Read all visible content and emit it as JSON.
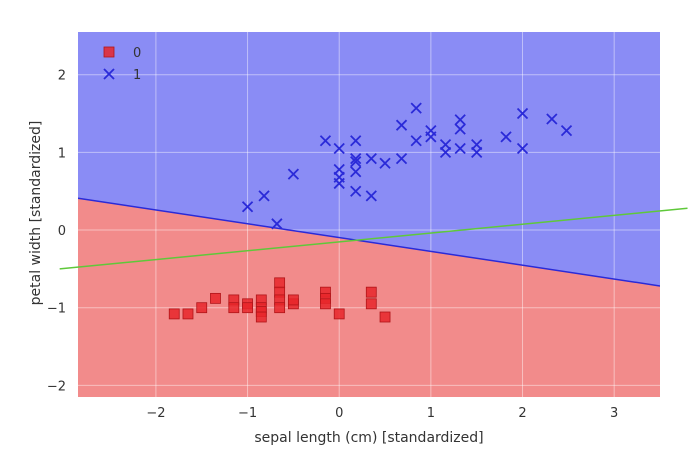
{
  "chart_data": {
    "type": "scatter",
    "title": "",
    "xlabel": "sepal length (cm) [standardized]",
    "ylabel": "petal width [standardized]",
    "xlim": [
      -2.85,
      3.5
    ],
    "ylim": [
      -2.15,
      2.55
    ],
    "xticks": [
      -2,
      -1,
      0,
      1,
      2,
      3
    ],
    "yticks": [
      -2,
      -1,
      0,
      1,
      2
    ],
    "tick_labels_x": [
      "−2",
      "−1",
      "0",
      "1",
      "2",
      "3"
    ],
    "tick_labels_y": [
      "−2",
      "−1",
      "0",
      "1",
      "2"
    ],
    "grid": true,
    "legend_position": "top-left",
    "regions": [
      {
        "class": "1",
        "color": "#8a8cf5",
        "side": "above"
      },
      {
        "class": "0",
        "color": "#f28b8b",
        "side": "below"
      }
    ],
    "decision_boundary": {
      "color": "#2a2ad8",
      "points": [
        [
          -2.85,
          0.41
        ],
        [
          3.5,
          -0.72
        ]
      ]
    },
    "extra_line": {
      "color": "#5fc83a",
      "points": [
        [
          -3.05,
          -0.5
        ],
        [
          3.8,
          0.28
        ]
      ]
    },
    "series": [
      {
        "name": "0",
        "marker": "square",
        "color": "#e8262a",
        "points": [
          [
            -1.8,
            -1.08
          ],
          [
            -1.65,
            -1.08
          ],
          [
            -1.5,
            -1.0
          ],
          [
            -1.35,
            -0.88
          ],
          [
            -1.15,
            -0.9
          ],
          [
            -1.15,
            -1.0
          ],
          [
            -1.0,
            -0.95
          ],
          [
            -1.0,
            -1.0
          ],
          [
            -0.85,
            -0.9
          ],
          [
            -0.85,
            -1.0
          ],
          [
            -0.85,
            -1.05
          ],
          [
            -0.85,
            -1.12
          ],
          [
            -0.65,
            -0.68
          ],
          [
            -0.65,
            -0.8
          ],
          [
            -0.65,
            -0.9
          ],
          [
            -0.65,
            -1.0
          ],
          [
            -0.5,
            -0.95
          ],
          [
            -0.5,
            -0.9
          ],
          [
            -0.15,
            -0.8
          ],
          [
            -0.15,
            -0.88
          ],
          [
            -0.15,
            -0.95
          ],
          [
            0.0,
            -1.08
          ],
          [
            0.35,
            -0.8
          ],
          [
            0.35,
            -0.95
          ],
          [
            0.5,
            -1.12
          ]
        ]
      },
      {
        "name": "1",
        "marker": "x",
        "color": "#2a2ad8",
        "points": [
          [
            -1.0,
            0.3
          ],
          [
            -0.82,
            0.44
          ],
          [
            -0.68,
            0.08
          ],
          [
            -0.5,
            0.72
          ],
          [
            -0.15,
            1.15
          ],
          [
            0.0,
            0.6
          ],
          [
            0.0,
            0.68
          ],
          [
            0.0,
            0.78
          ],
          [
            0.0,
            1.05
          ],
          [
            0.18,
            0.5
          ],
          [
            0.18,
            0.75
          ],
          [
            0.18,
            0.88
          ],
          [
            0.18,
            0.92
          ],
          [
            0.18,
            1.15
          ],
          [
            0.35,
            0.44
          ],
          [
            0.35,
            0.92
          ],
          [
            0.5,
            0.86
          ],
          [
            0.68,
            0.92
          ],
          [
            0.68,
            1.35
          ],
          [
            0.84,
            1.57
          ],
          [
            0.84,
            1.15
          ],
          [
            1.0,
            1.2
          ],
          [
            1.0,
            1.28
          ],
          [
            1.16,
            1.0
          ],
          [
            1.16,
            1.1
          ],
          [
            1.32,
            1.3
          ],
          [
            1.32,
            1.42
          ],
          [
            1.32,
            1.05
          ],
          [
            1.5,
            1.1
          ],
          [
            1.5,
            1.0
          ],
          [
            1.82,
            1.2
          ],
          [
            2.0,
            1.5
          ],
          [
            2.0,
            1.05
          ],
          [
            2.32,
            1.43
          ],
          [
            2.48,
            1.28
          ]
        ]
      }
    ]
  }
}
